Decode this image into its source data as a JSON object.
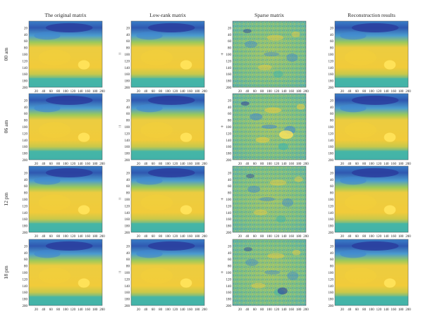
{
  "figure": {
    "column_titles": [
      "The original matrix",
      "Low-rank matrix",
      "Sparse matrix",
      "Reconstruction results"
    ],
    "row_labels": [
      "00 am",
      "06 am",
      "12 pm",
      "18 pm"
    ],
    "operators": [
      "=",
      "+"
    ],
    "tick_labels": [
      "20",
      "40",
      "60",
      "80",
      "100",
      "120",
      "140",
      "160",
      "180",
      "200"
    ]
  },
  "chart_data": {
    "type": "heatmap",
    "panel_grid": {
      "rows": 4,
      "columns": 4
    },
    "matrix_size": [
      200,
      200
    ],
    "x_ticks": [
      20,
      40,
      60,
      80,
      100,
      120,
      140,
      160,
      180,
      200
    ],
    "y_ticks": [
      20,
      40,
      60,
      80,
      100,
      120,
      140,
      160,
      180,
      200
    ],
    "colors": {
      "low": "#2a3d9e",
      "mid_low": "#3f87d0",
      "mid": "#38b4b0",
      "mid_high": "#9cc95a",
      "high": "#f3cf3a",
      "peak": "#ffe35a"
    }
  }
}
